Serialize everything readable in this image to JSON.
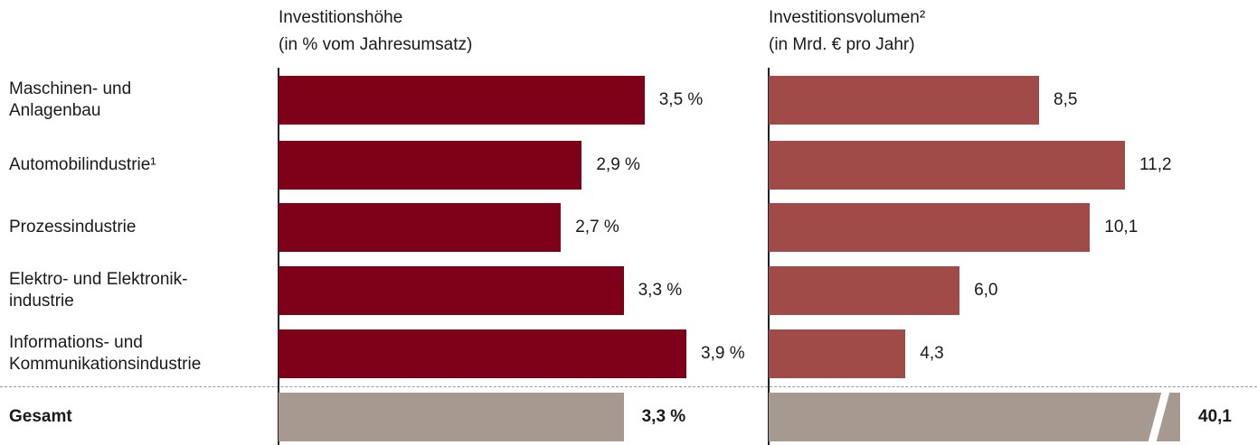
{
  "chart_data": {
    "type": "bar",
    "categories": [
      "Maschinen- und\nAnlagenbau",
      "Automobilindustrie¹",
      "Prozessindustrie",
      "Elektro- und Elektronik-\nindustrie",
      "Informations- und\nKommunikationsindustrie"
    ],
    "total_category": "Gesamt",
    "total_color": "#a69a90",
    "series": [
      {
        "name": "Investitionshöhe\n(in % vom Jahresumsatz)",
        "color": "#7f0019",
        "values": [
          3.5,
          2.9,
          2.7,
          3.3,
          3.9
        ],
        "value_labels": [
          "3,5 %",
          "2,9 %",
          "2,7 %",
          "3,3 %",
          "3,9 %"
        ],
        "total": 3.3,
        "total_label": "3,3 %"
      },
      {
        "name": "Investitionsvolumen²\n(in Mrd. € pro Jahr)",
        "color": "#a04b47",
        "values": [
          8.5,
          11.2,
          10.1,
          6.0,
          4.3
        ],
        "value_labels": [
          "8,5",
          "11,2",
          "10,1",
          "6,0",
          "4,3"
        ],
        "total": 40.1,
        "total_label": "40,1"
      }
    ]
  }
}
